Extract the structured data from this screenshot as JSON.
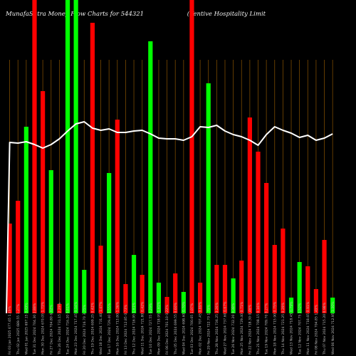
{
  "chart_data": {
    "type": "bar",
    "title": "MunafaSutra Money Flow Charts for 544321",
    "subtitle": "(Ventive Hospitality Limit",
    "colors": {
      "up": "#00ff00",
      "down": "#ff0000",
      "line": "#ffffff",
      "grid": "#7a4a00"
    },
    "ylim": [
      0,
      440
    ],
    "categories": [
      "Fri 03 Jan 2025",
      "Thu 02 Jan 2025",
      "Wed 01 Jan 2025",
      "Tue 31 Dec 2024",
      "Mon 30 Dec 2024",
      "Fri 27 Dec 2024",
      "Thu 26 Dec 2024",
      "Tue 24 Dec 2024",
      "Mon 23 Dec 2024",
      "Fri 20 Dec 2024",
      "Thu 19 Dec 2024",
      "Wed 18 Dec 2024",
      "Tue 17 Dec 2024",
      "Mon 16 Dec 2024",
      "Fri 13 Dec 2024",
      "Thu 12 Dec 2024",
      "Wed 11 Dec 2024",
      "Tue 10 Dec 2024",
      "Mon 09 Dec 2024",
      "Fri 06 Dec 2024",
      "Thu 05 Dec 2024",
      "Wed 04 Dec 2024",
      "Tue 03 Dec 2024",
      "Mon 02 Dec 2024",
      "Fri 29 Nov 2024",
      "Thu 28 Nov 2024",
      "Wed 27 Nov 2024",
      "Tue 26 Nov 2024",
      "Mon 25 Nov 2024",
      "Fri 22 Nov 2024",
      "Thu 21 Nov 2024",
      "Tue 19 Nov 2024",
      "Mon 18 Nov 2024",
      "Thu 14 Nov 2024",
      "Wed 13 Nov 2024",
      "Tue 12 Nov 2024",
      "Mon 11 Nov 2024",
      "Fri 08 Nov 2024",
      "Thu 07 Nov 2024",
      "Wed 06 Nov 2024"
    ],
    "tick_labels": [
      "Fri 03 Jan 2025 677.65 1.49%",
      "Thu 02 Jan 2025 689.55 1.27%",
      "Wed 01 Jan 2025 697.15 0.49%",
      "Tue 31 Dec 2024 704.30 2.88%",
      "Mon 30 Dec 2024 670.05 1.73%",
      "Fri 27 Dec 2024 704.80 6.02%",
      "Thu 26 Dec 2024 731.15 2.29%",
      "Tue 24 Dec 2024 716.20 0.81%",
      "Mon 23 Dec 2024 717.45 0.14%",
      "Fri 20 Dec 2024 716.70 3.75%",
      "Thu 19 Dec 2024 699.25 0.42%",
      "Wed 18 Dec 2024 731.40 1.47%",
      "Tue 17 Dec 2024 729.40 0.55%",
      "Mon 16 Dec 2024 713.80 1.36%",
      "Fri 13 Dec 2024 712.85 0.73%",
      "Thu 12 Dec 2024 716.95 1.61%",
      "Wed 11 Dec 2024 721.80 0.42%",
      "Tue 10 Dec 2024 727.55 0.29%",
      "Mon 09 Dec 2024 718.95 1.61%",
      "Fri 06 Dec 2024 701.10 0.22%",
      "Thu 05 Dec 2024 699.55 0.60%",
      "Wed 04 Dec 2024 698.60 0.70%",
      "Tue 03 Dec 2024 700.05 1.07%",
      "Mon 02 Dec 2024 707.45 0.89%",
      "Fri 29 Nov 2024 722.70 1.79%",
      "Thu 28 Nov 2024 736.25 3.26%",
      "Wed 27 Nov 2024 737.60 0.67%",
      "Tue 26 Nov 2024 732.20 0.38%",
      "Mon 25 Nov 2024 729.40 0.71%",
      "Fri 22 Nov 2024 718.30 0.46%",
      "Thu 21 Nov 2024 708.15 0.16%",
      "Tue 19 Nov 2024 709.70 0.27%",
      "Mon 18 Nov 2024 715.90 0.75%",
      "Thu 14 Nov 2024 721.25 0.29%",
      "Wed 13 Nov 2024 718.45 0.79%",
      "Tue 12 Nov 2024 707.75 1.52%",
      "Mon 11 Nov 2024 718.65 0.91%",
      "Fri 08 Nov 2024 704.85 1.49%",
      "Thu 07 Nov 2024 715.20 0.98%",
      "Wed 06 Nov 2024 712.95 1.30%"
    ],
    "series": [
      {
        "kind": "bar",
        "directions": [
          "down",
          "down",
          "up",
          "down",
          "down",
          "up",
          "down",
          "up",
          "up",
          "up",
          "down",
          "down",
          "up",
          "down",
          "down",
          "up",
          "down",
          "up",
          "up",
          "down",
          "down",
          "up",
          "down",
          "down",
          "up",
          "down",
          "down",
          "up",
          "down",
          "down",
          "down",
          "down",
          "down",
          "down",
          "up",
          "up",
          "down",
          "down",
          "down",
          "up"
        ],
        "values": [
          126,
          158,
          262,
          440,
          312,
          201,
          13,
          440,
          440,
          61,
          408,
          95,
          197,
          272,
          41,
          82,
          54,
          382,
          43,
          23,
          56,
          30,
          440,
          43,
          323,
          68,
          68,
          49,
          74,
          275,
          227,
          183,
          96,
          119,
          22,
          72,
          66,
          34,
          103,
          22
        ]
      },
      {
        "kind": "line",
        "values": [
          240,
          239,
          241,
          237,
          232,
          237,
          245,
          256,
          266,
          269,
          260,
          257,
          259,
          254,
          254,
          256,
          257,
          252,
          246,
          245,
          245,
          243,
          248,
          262,
          261,
          264,
          256,
          251,
          248,
          243,
          236,
          251,
          262,
          257,
          253,
          247,
          250,
          243,
          246,
          252
        ]
      }
    ],
    "xlabel": "",
    "ylabel": ""
  }
}
